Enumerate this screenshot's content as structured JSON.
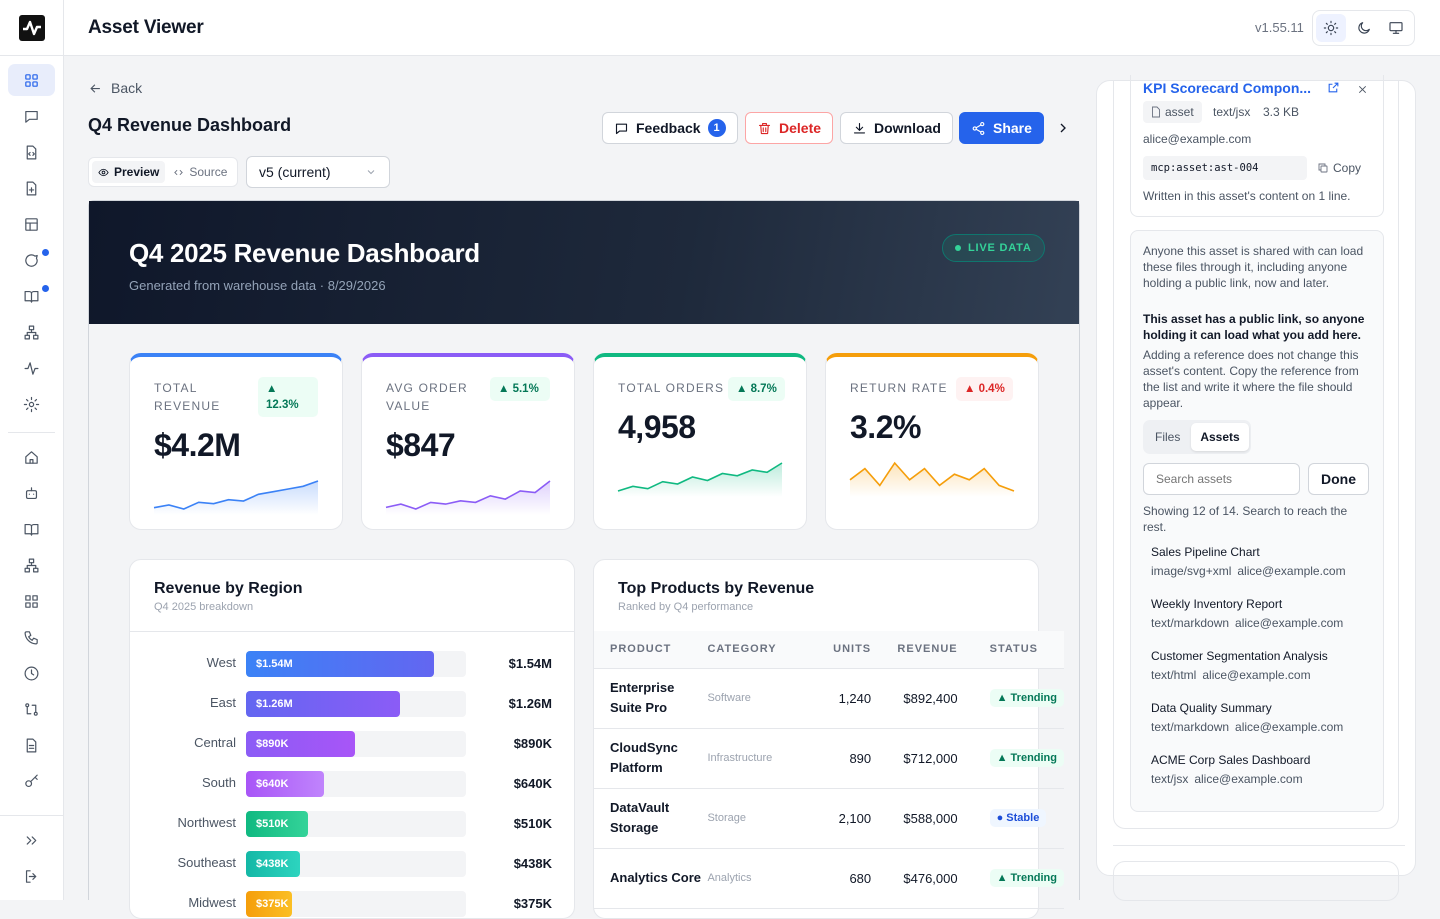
{
  "app": {
    "title": "Asset Viewer",
    "version": "v1.55.11"
  },
  "theme": {
    "options": [
      "light-icon",
      "moon-icon",
      "monitor-icon"
    ],
    "selected": "light"
  },
  "nav": {
    "items": [
      {
        "icon": "grid-icon",
        "active": true
      },
      {
        "icon": "message-icon"
      },
      {
        "icon": "file-code-icon"
      },
      {
        "icon": "file-plus-icon"
      },
      {
        "icon": "table-icon"
      },
      {
        "icon": "chat-bubble-icon",
        "dot": true
      },
      {
        "icon": "book-open-icon",
        "dot": true
      },
      {
        "icon": "network-icon"
      },
      {
        "icon": "activity-icon"
      },
      {
        "icon": "gear-icon"
      },
      {
        "icon": "home-icon"
      },
      {
        "icon": "bot-icon"
      },
      {
        "icon": "book-icon"
      },
      {
        "icon": "hierarchy-icon"
      },
      {
        "icon": "apps-icon"
      },
      {
        "icon": "phone-icon"
      },
      {
        "icon": "clock-icon"
      },
      {
        "icon": "git-compare-icon"
      },
      {
        "icon": "document-icon"
      },
      {
        "icon": "key-icon"
      }
    ],
    "bottom": [
      "expand-icon",
      "logout-icon"
    ]
  },
  "page": {
    "back_label": "Back",
    "title": "Q4 Revenue Dashboard",
    "actions": {
      "feedback": "Feedback",
      "feedback_count": "1",
      "delete": "Delete",
      "download": "Download",
      "share": "Share"
    },
    "view_tabs": {
      "preview": "Preview",
      "source": "Source",
      "selected": "Preview"
    },
    "version_select": "v5 (current)"
  },
  "preview": {
    "hero_title": "Q4 2025 Revenue Dashboard",
    "hero_sub": "Generated from warehouse data · 8/29/2026",
    "live_badge": "LIVE DATA",
    "kpis": [
      {
        "label": "TOTAL REVENUE",
        "delta": "▲ 12.3%",
        "direction": "up",
        "value": "$4.2M",
        "accent": "#3b82f6",
        "spark": [
          10,
          12,
          9,
          14,
          13,
          16,
          15,
          20,
          22,
          24,
          26,
          30
        ]
      },
      {
        "label": "AVG ORDER VALUE",
        "delta": "▲ 5.1%",
        "direction": "up",
        "value": "$847",
        "accent": "#8b5cf6",
        "spark": [
          12,
          14,
          11,
          15,
          14,
          16,
          15,
          19,
          17,
          22,
          21,
          28
        ]
      },
      {
        "label": "TOTAL ORDERS",
        "delta": "▲ 8.7%",
        "direction": "up",
        "value": "4,958",
        "accent": "#10b981",
        "spark": [
          10,
          14,
          12,
          18,
          16,
          22,
          19,
          25,
          23,
          28,
          26,
          34
        ]
      },
      {
        "label": "RETURN RATE",
        "delta": "▲ 0.4%",
        "direction": "down",
        "value": "3.2%",
        "accent": "#f59e0b",
        "spark": [
          22,
          24,
          21,
          25,
          22,
          24,
          21,
          23,
          22,
          24,
          21,
          20
        ]
      }
    ],
    "regions": {
      "title": "Revenue by Region",
      "subtitle": "Q4 2025 breakdown",
      "max": 1.8,
      "rows": [
        {
          "name": "West",
          "label": "$1.54M",
          "value": 1.54,
          "color": "linear-gradient(90deg,#3b82f6,#6366f1)"
        },
        {
          "name": "East",
          "label": "$1.26M",
          "value": 1.26,
          "color": "linear-gradient(90deg,#6366f1,#8b5cf6)"
        },
        {
          "name": "Central",
          "label": "$890K",
          "value": 0.89,
          "color": "linear-gradient(90deg,#8b5cf6,#a855f7)"
        },
        {
          "name": "South",
          "label": "$640K",
          "value": 0.64,
          "color": "linear-gradient(90deg,#a855f7,#c084fc)"
        },
        {
          "name": "Northwest",
          "label": "$510K",
          "value": 0.51,
          "color": "linear-gradient(90deg,#10b981,#34d399)"
        },
        {
          "name": "Southeast",
          "label": "$438K",
          "value": 0.438,
          "color": "linear-gradient(90deg,#14b8a6,#2dd4bf)"
        },
        {
          "name": "Midwest",
          "label": "$375K",
          "value": 0.375,
          "color": "linear-gradient(90deg,#f59e0b,#fbbf24)"
        }
      ]
    },
    "products": {
      "title": "Top Products by Revenue",
      "subtitle": "Ranked by Q4 performance",
      "columns": [
        "PRODUCT",
        "CATEGORY",
        "UNITS",
        "REVENUE",
        "STATUS"
      ],
      "rows": [
        {
          "product": "Enterprise Suite Pro",
          "category": "Software",
          "units": "1,240",
          "revenue": "$892,400",
          "status": "▲ Trending",
          "stable": false
        },
        {
          "product": "CloudSync Platform",
          "category": "Infrastructure",
          "units": "890",
          "revenue": "$712,000",
          "status": "▲ Trending",
          "stable": false
        },
        {
          "product": "DataVault Storage",
          "category": "Storage",
          "units": "2,100",
          "revenue": "$588,000",
          "status": "● Stable",
          "stable": true
        },
        {
          "product": "Analytics Core",
          "category": "Analytics",
          "units": "680",
          "revenue": "$476,000",
          "status": "▲ Trending",
          "stable": false
        }
      ]
    }
  },
  "side": {
    "asset_title": "KPI Scorecard Compon...",
    "asset_type_pill": "asset",
    "mime": "text/jsx",
    "size": "3.3 KB",
    "owner": "alice@example.com",
    "reference": "mcp:asset:ast-004",
    "copy_label": "Copy",
    "written": "Written in this asset's content on 1 line.",
    "info_1": "Anyone this asset is shared with can load these files through it, including anyone holding a public link, now and later.",
    "info_2": "This asset has a public link, so anyone holding it can load what you add here.",
    "info_3": "Adding a reference does not change this asset's content. Copy the reference from the list and write it where the file should appear.",
    "tabs": [
      "Files",
      "Assets"
    ],
    "selected_tab": "Assets",
    "search_placeholder": "Search assets",
    "done_label": "Done",
    "showing": "Showing 12 of 14. Search to reach the rest.",
    "assets": [
      {
        "name": "Sales Pipeline Chart",
        "mime": "image/svg+xml",
        "owner": "alice@example.com"
      },
      {
        "name": "Weekly Inventory Report",
        "mime": "text/markdown",
        "owner": "alice@example.com"
      },
      {
        "name": "Customer Segmentation Analysis",
        "mime": "text/html",
        "owner": "alice@example.com"
      },
      {
        "name": "Data Quality Summary",
        "mime": "text/markdown",
        "owner": "alice@example.com"
      },
      {
        "name": "ACME Corp Sales Dashboard",
        "mime": "text/jsx",
        "owner": "alice@example.com"
      }
    ]
  }
}
